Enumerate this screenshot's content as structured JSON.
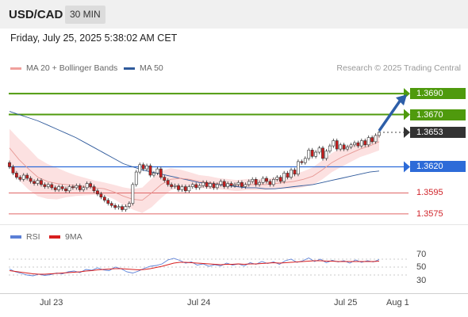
{
  "header": {
    "symbol": "USD/CAD",
    "timeframe": "30 MIN",
    "datetime": "Friday, July 25, 2025 5:38:02 AM CET"
  },
  "legend": {
    "ma20": {
      "label": "MA 20 + Bollinger Bands",
      "color": "#f0a09c"
    },
    "ma50": {
      "label": "MA 50",
      "color": "#2f5a9b"
    }
  },
  "research_note": "Research © 2025 Trading Central",
  "levels": [
    {
      "value": 1.369,
      "label": "1.3690",
      "kind": "resistance",
      "color": "#4f9a0d"
    },
    {
      "value": 1.367,
      "label": "1.3670",
      "kind": "resistance",
      "color": "#4f9a0d"
    },
    {
      "value": 1.3653,
      "label": "1.3653",
      "kind": "last",
      "color": "#333333"
    },
    {
      "value": 1.362,
      "label": "1.3620",
      "kind": "pivot",
      "color": "#2d6bd8"
    },
    {
      "value": 1.3595,
      "label": "1.3595",
      "kind": "support",
      "color": "#e06666"
    },
    {
      "value": 1.3575,
      "label": "1.3575",
      "kind": "support",
      "color": "#e06666"
    }
  ],
  "rsi_legend": {
    "rsi": {
      "label": "RSI",
      "color": "#5b7fd6"
    },
    "ma": {
      "label": "9MA",
      "color": "#d81e1e"
    }
  },
  "rsi_ticks": [
    "70",
    "50",
    "30"
  ],
  "x_ticks": [
    "Jul 23",
    "Jul 24",
    "Jul 25",
    "Aug 1"
  ],
  "chart_data": [
    {
      "type": "candlestick",
      "title": "USD/CAD 30 MIN",
      "ylim": [
        1.3565,
        1.37
      ],
      "close": [
        1.362,
        1.3614,
        1.361,
        1.3608,
        1.3612,
        1.3609,
        1.3606,
        1.3604,
        1.3607,
        1.3603,
        1.3601,
        1.3603,
        1.36,
        1.3598,
        1.3601,
        1.3599,
        1.3597,
        1.3601,
        1.36,
        1.3602,
        1.3598,
        1.36,
        1.3604,
        1.3601,
        1.3597,
        1.3594,
        1.3591,
        1.3588,
        1.3585,
        1.3583,
        1.3581,
        1.3582,
        1.3579,
        1.3582,
        1.3585,
        1.3603,
        1.3615,
        1.3622,
        1.3618,
        1.3621,
        1.3612,
        1.3614,
        1.3618,
        1.361,
        1.3607,
        1.3603,
        1.3601,
        1.3602,
        1.3598,
        1.3601,
        1.3597,
        1.3601,
        1.3603,
        1.36,
        1.3602,
        1.3605,
        1.3601,
        1.3604,
        1.36,
        1.3603,
        1.3606,
        1.3601,
        1.3604,
        1.3602,
        1.3603,
        1.3605,
        1.3601,
        1.3603,
        1.3606,
        1.3608,
        1.3603,
        1.3605,
        1.3609,
        1.3606,
        1.3603,
        1.3608,
        1.361,
        1.3606,
        1.3614,
        1.361,
        1.3617,
        1.3613,
        1.3625,
        1.3624,
        1.3628,
        1.3636,
        1.363,
        1.3634,
        1.3638,
        1.3628,
        1.3635,
        1.364,
        1.3645,
        1.3637,
        1.3641,
        1.3637,
        1.3639,
        1.3641,
        1.3643,
        1.364,
        1.3645,
        1.3641,
        1.3648,
        1.3644,
        1.365,
        1.3653
      ]
    },
    {
      "type": "line",
      "name": "MA 50",
      "values": [
        1.3673,
        1.367,
        1.3667,
        1.3664,
        1.366,
        1.3656,
        1.3652,
        1.3648,
        1.3643,
        1.3638,
        1.3633,
        1.3628,
        1.3623,
        1.362,
        1.3617,
        1.3615,
        1.3613,
        1.3611,
        1.3609,
        1.3607,
        1.3605,
        1.3604,
        1.3603,
        1.3602,
        1.3601,
        1.36,
        1.36,
        1.3599,
        1.3599,
        1.36,
        1.3601,
        1.3602,
        1.3603,
        1.3605,
        1.3607,
        1.3609,
        1.3611,
        1.3613,
        1.3615,
        1.3616
      ]
    },
    {
      "type": "line",
      "name": "MA 20",
      "values": [
        1.3638,
        1.3627,
        1.3618,
        1.361,
        1.3606,
        1.3604,
        1.3603,
        1.3602,
        1.3601,
        1.36,
        1.3599,
        1.3596,
        1.3592,
        1.3589,
        1.3588,
        1.3595,
        1.3603,
        1.3608,
        1.3609,
        1.3608,
        1.3606,
        1.3605,
        1.3604,
        1.3603,
        1.3602,
        1.3603,
        1.3603,
        1.3603,
        1.3604,
        1.3605,
        1.3606,
        1.3608,
        1.3611,
        1.3617,
        1.3624,
        1.3629,
        1.3633,
        1.3637,
        1.364,
        1.3644
      ]
    },
    {
      "type": "line",
      "name": "RSI",
      "ylim": [
        0,
        100
      ],
      "series": [
        {
          "name": "RSI",
          "values": [
            45,
            38,
            34,
            30,
            28,
            32,
            29,
            31,
            35,
            33,
            38,
            40,
            36,
            44,
            42,
            48,
            43,
            41,
            50,
            46,
            38,
            35,
            40,
            47,
            52,
            54,
            58,
            68,
            72,
            67,
            60,
            63,
            55,
            58,
            52,
            56,
            53,
            60,
            55,
            58,
            53,
            61,
            57,
            64,
            59,
            63,
            57,
            66,
            70,
            62,
            66,
            73,
            64,
            70,
            61,
            67,
            63,
            66,
            60,
            68,
            62,
            66,
            63,
            69
          ]
        },
        {
          "name": "9MA",
          "values": [
            41,
            39,
            37,
            35,
            33,
            32,
            32,
            33,
            34,
            35,
            36,
            37,
            38,
            40,
            41,
            43,
            44,
            45,
            46,
            46,
            45,
            44,
            43,
            44,
            46,
            49,
            52,
            56,
            60,
            62,
            62,
            61,
            60,
            59,
            58,
            57,
            56,
            57,
            57,
            58,
            57,
            58,
            58,
            59,
            60,
            61,
            60,
            61,
            62,
            63,
            64,
            65,
            66,
            66,
            65,
            65,
            64,
            64,
            64,
            64,
            64,
            64,
            64,
            65
          ]
        }
      ]
    }
  ]
}
